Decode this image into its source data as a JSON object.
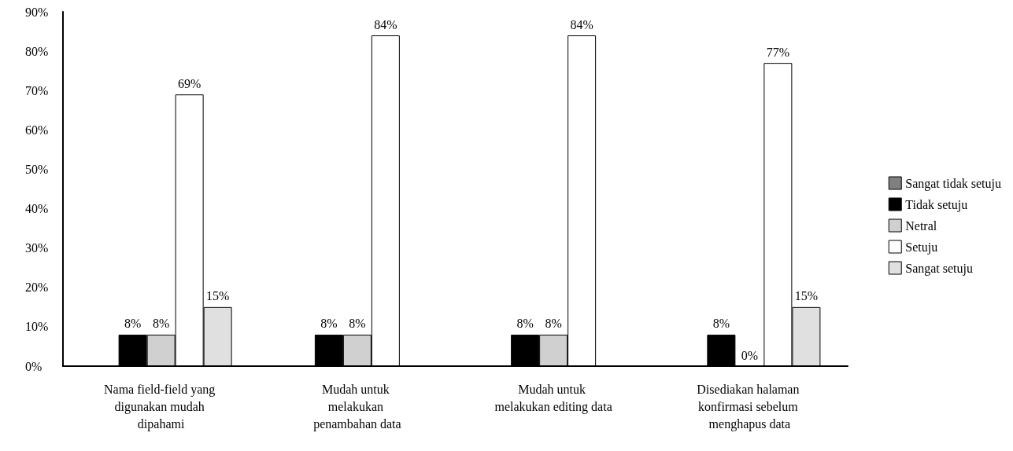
{
  "chart_data": {
    "type": "bar",
    "categories": [
      "Nama field-field yang digunakan mudah dipahami",
      "Mudah untuk melakukan penambahan data",
      "Mudah untuk melakukan editing data",
      "Disediakan halaman konfirmasi sebelum menghapus data"
    ],
    "series": [
      {
        "name": "Sangat tidak setuju",
        "color": "#808080",
        "values": [
          0,
          0,
          0,
          0
        ],
        "value_labels": [
          null,
          null,
          null,
          null
        ]
      },
      {
        "name": "Tidak setuju",
        "color": "#000000",
        "values": [
          8,
          8,
          8,
          8
        ],
        "value_labels": [
          "8%",
          "8%",
          "8%",
          "8%"
        ]
      },
      {
        "name": "Netral",
        "color": "#d0d0d0",
        "values": [
          8,
          8,
          8,
          0
        ],
        "value_labels": [
          "8%",
          "8%",
          "8%",
          "0%"
        ]
      },
      {
        "name": "Setuju",
        "color": "#ffffff",
        "values": [
          69,
          84,
          84,
          77
        ],
        "value_labels": [
          "69%",
          "84%",
          "84%",
          "77%"
        ]
      },
      {
        "name": "Sangat setuju",
        "color": "#e0e0e0",
        "values": [
          15,
          0,
          0,
          15
        ],
        "value_labels": [
          "15%",
          null,
          null,
          "15%"
        ]
      }
    ],
    "ylim": [
      0,
      90
    ],
    "yticks": [
      {
        "value": 0,
        "label": "0%"
      },
      {
        "value": 10,
        "label": "10%"
      },
      {
        "value": 20,
        "label": "20%"
      },
      {
        "value": 30,
        "label": "30%"
      },
      {
        "value": 40,
        "label": "40%"
      },
      {
        "value": 50,
        "label": "50%"
      },
      {
        "value": 60,
        "label": "60%"
      },
      {
        "value": 70,
        "label": "70%"
      },
      {
        "value": 80,
        "label": "80%"
      },
      {
        "value": 90,
        "label": "90%"
      }
    ],
    "grid": false,
    "legend": "right"
  }
}
